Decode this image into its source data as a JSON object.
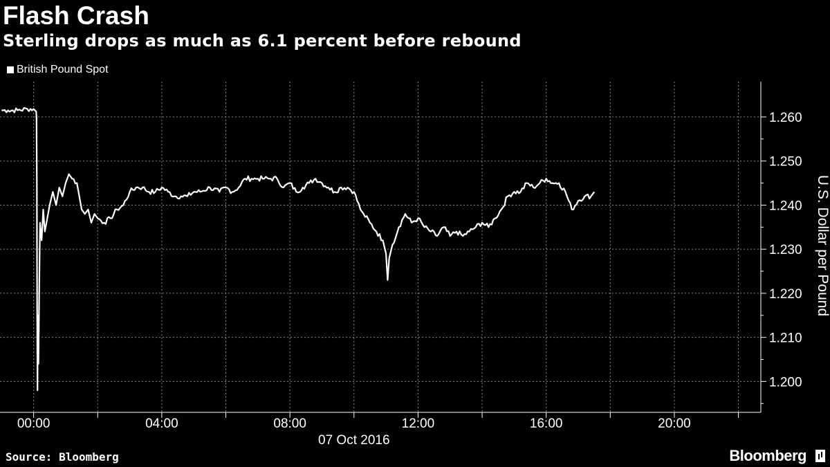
{
  "chart_data": {
    "type": "line",
    "title": "Flash Crash",
    "subtitle": "Sterling drops as much as 6.1 percent before rebound",
    "ylabel": "U.S. Dollar per Pound",
    "xlabel": "07 Oct 2016",
    "source": "Source: Bloomberg",
    "brand": "Bloomberg",
    "legend_position": "top-left",
    "grid": true,
    "ylim": [
      1.193,
      1.268
    ],
    "xlim": [
      -1.05,
      22.7
    ],
    "x_unit": "hours from 00:00 on 07 Oct 2016",
    "y_ticks": [
      "1.260",
      "1.250",
      "1.240",
      "1.230",
      "1.220",
      "1.210",
      "1.200"
    ],
    "y_tick_values": [
      1.26,
      1.25,
      1.24,
      1.23,
      1.22,
      1.21,
      1.2
    ],
    "x_ticks": [
      "00:00",
      "04:00",
      "08:00",
      "12:00",
      "16:00",
      "20:00"
    ],
    "x_tick_values": [
      0,
      4,
      8,
      12,
      16,
      20
    ],
    "series": [
      {
        "name": "British Pound Spot",
        "color": "#ffffff",
        "x": [
          -1.0,
          -0.8,
          -0.5,
          -0.2,
          0.0,
          0.08,
          0.09,
          0.1,
          0.11,
          0.12,
          0.13,
          0.15,
          0.18,
          0.2,
          0.25,
          0.3,
          0.35,
          0.4,
          0.5,
          0.6,
          0.7,
          0.8,
          0.9,
          1.0,
          1.1,
          1.2,
          1.35,
          1.5,
          1.6,
          1.7,
          1.8,
          1.9,
          2.0,
          2.2,
          2.4,
          2.6,
          2.8,
          3.0,
          3.2,
          3.4,
          3.6,
          3.8,
          4.0,
          4.2,
          4.4,
          4.6,
          4.8,
          5.0,
          5.2,
          5.5,
          5.8,
          6.0,
          6.2,
          6.4,
          6.6,
          6.8,
          7.0,
          7.2,
          7.4,
          7.6,
          7.8,
          8.0,
          8.2,
          8.4,
          8.6,
          8.8,
          9.0,
          9.2,
          9.4,
          9.6,
          9.8,
          10.0,
          10.2,
          10.3,
          10.5,
          10.7,
          10.9,
          11.0,
          11.05,
          11.1,
          11.2,
          11.4,
          11.6,
          11.8,
          12.0,
          12.2,
          12.4,
          12.6,
          12.8,
          13.0,
          13.2,
          13.4,
          13.6,
          13.8,
          14.0,
          14.2,
          14.4,
          14.6,
          14.8,
          15.0,
          15.2,
          15.4,
          15.6,
          15.8,
          16.0,
          16.2,
          16.4,
          16.6,
          16.8,
          17.0,
          17.2,
          17.4,
          17.5
        ],
        "values": [
          1.2615,
          1.2615,
          1.2615,
          1.2618,
          1.2618,
          1.2612,
          1.26,
          1.245,
          1.215,
          1.198,
          1.215,
          1.204,
          1.225,
          1.236,
          1.232,
          1.239,
          1.234,
          1.236,
          1.24,
          1.243,
          1.24,
          1.244,
          1.242,
          1.245,
          1.247,
          1.246,
          1.245,
          1.239,
          1.238,
          1.239,
          1.236,
          1.238,
          1.237,
          1.236,
          1.237,
          1.239,
          1.24,
          1.243,
          1.244,
          1.244,
          1.243,
          1.243,
          1.244,
          1.243,
          1.242,
          1.242,
          1.242,
          1.243,
          1.243,
          1.244,
          1.243,
          1.244,
          1.243,
          1.244,
          1.246,
          1.246,
          1.246,
          1.246,
          1.246,
          1.246,
          1.244,
          1.245,
          1.243,
          1.244,
          1.245,
          1.246,
          1.245,
          1.244,
          1.243,
          1.244,
          1.244,
          1.243,
          1.239,
          1.238,
          1.236,
          1.234,
          1.232,
          1.229,
          1.223,
          1.228,
          1.231,
          1.235,
          1.238,
          1.236,
          1.237,
          1.235,
          1.234,
          1.233,
          1.235,
          1.233,
          1.234,
          1.233,
          1.234,
          1.235,
          1.236,
          1.235,
          1.237,
          1.239,
          1.242,
          1.243,
          1.243,
          1.245,
          1.244,
          1.245,
          1.246,
          1.245,
          1.245,
          1.243,
          1.239,
          1.241,
          1.242,
          1.242,
          1.243
        ]
      }
    ]
  }
}
